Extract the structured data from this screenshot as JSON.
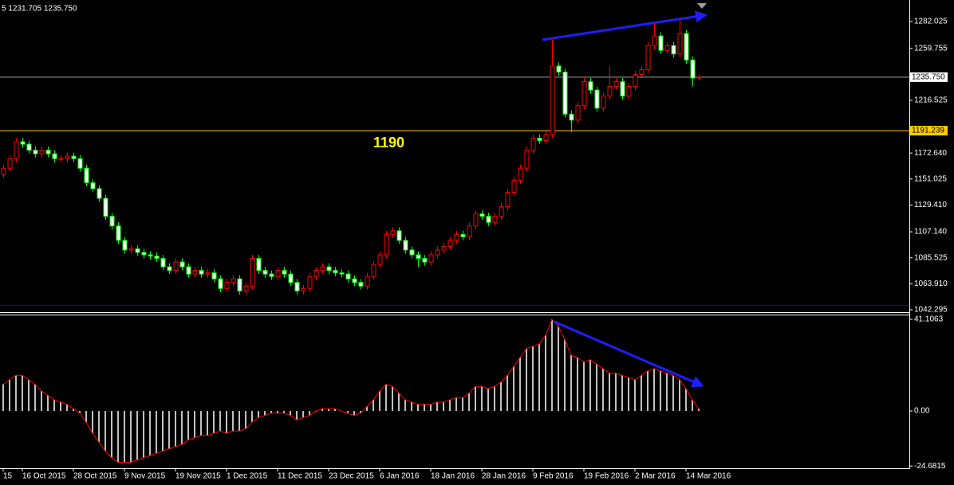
{
  "chart_data": {
    "type": "candlestick",
    "header": "5 1231.705 1235.750",
    "annotation": "1190",
    "up_color": "#ff0000",
    "down_color": "#00ff00",
    "ylim": [
      1040.3,
      1299.9
    ],
    "yticks": [
      1282.025,
      1259.755,
      1216.525,
      {
        "value": 1172.64,
        "label": "1172.640"
      },
      1151.025,
      {
        "value": 1129.41,
        "label": "1129.410"
      },
      {
        "value": 1107.14,
        "label": "1107.140"
      },
      1085.525,
      {
        "value": 1063.91,
        "label": "1063.910"
      },
      1042.295
    ],
    "price_lines": [
      {
        "value": 1235.75,
        "label": "1235.750",
        "color": "#a0a0a0",
        "box_color": "#ffffff"
      },
      {
        "value": 1191.239,
        "color": "#ffcc00",
        "box_color": "#ffcc00"
      },
      {
        "value": 1046,
        "color": "#0000ff"
      }
    ],
    "categories": [
      "15",
      null,
      null,
      "16 Oct 2015",
      null,
      null,
      null,
      null,
      null,
      null,
      null,
      "28 Oct 2015",
      null,
      null,
      null,
      null,
      null,
      null,
      null,
      "9 Nov 2015",
      null,
      null,
      null,
      null,
      null,
      null,
      null,
      "19 Nov 2015",
      null,
      null,
      null,
      null,
      null,
      null,
      null,
      "1 Dec 2015",
      null,
      null,
      null,
      null,
      null,
      null,
      null,
      "11 Dec 2015",
      null,
      null,
      null,
      null,
      null,
      null,
      null,
      "23 Dec 2015",
      null,
      null,
      null,
      null,
      null,
      null,
      null,
      "6 Jan 2016",
      null,
      null,
      null,
      null,
      null,
      null,
      null,
      "18 Jan 2016",
      null,
      null,
      null,
      null,
      null,
      null,
      null,
      "28 Jan 2016",
      null,
      null,
      null,
      null,
      null,
      null,
      null,
      "9 Feb 2016",
      null,
      null,
      null,
      null,
      null,
      null,
      null,
      "19 Feb 2016",
      null,
      null,
      null,
      null,
      null,
      null,
      null,
      "2 Mar 2016",
      null,
      null,
      null,
      null,
      null,
      null,
      null,
      "14 Mar 2016",
      null,
      null
    ],
    "ohlc": [
      [
        1155,
        1163,
        1152,
        1160
      ],
      [
        1160,
        1171,
        1157,
        1168
      ],
      [
        1168,
        1185,
        1165,
        1182
      ],
      [
        1182,
        1185,
        1177,
        1180
      ],
      [
        1180,
        1183,
        1172,
        1175
      ],
      [
        1175,
        1178,
        1169,
        1172
      ],
      [
        1172,
        1178,
        1169,
        1175
      ],
      [
        1175,
        1178,
        1169,
        1172
      ],
      [
        1172,
        1175,
        1165,
        1168
      ],
      [
        1168,
        1171,
        1165,
        1168
      ],
      [
        1168,
        1173,
        1165,
        1170
      ],
      [
        1170,
        1173,
        1165,
        1168
      ],
      [
        1168,
        1171,
        1157,
        1160
      ],
      [
        1160,
        1163,
        1145,
        1148
      ],
      [
        1148,
        1151,
        1140,
        1143
      ],
      [
        1143,
        1146,
        1132,
        1135
      ],
      [
        1135,
        1138,
        1117,
        1120
      ],
      [
        1120,
        1123,
        1109,
        1112
      ],
      [
        1112,
        1115,
        1097,
        1100
      ],
      [
        1100,
        1103,
        1089,
        1092
      ],
      [
        1092,
        1096,
        1089,
        1093
      ],
      [
        1093,
        1096,
        1087,
        1090
      ],
      [
        1090,
        1093,
        1085,
        1088
      ],
      [
        1088,
        1091,
        1084,
        1087
      ],
      [
        1087,
        1090,
        1082,
        1085
      ],
      [
        1085,
        1088,
        1075,
        1078
      ],
      [
        1078,
        1081,
        1072,
        1075
      ],
      [
        1075,
        1085,
        1072,
        1082
      ],
      [
        1082,
        1085,
        1075,
        1078
      ],
      [
        1078,
        1081,
        1069,
        1072
      ],
      [
        1072,
        1078,
        1069,
        1075
      ],
      [
        1075,
        1078,
        1069,
        1072
      ],
      [
        1072,
        1076,
        1069,
        1073
      ],
      [
        1073,
        1076,
        1065,
        1068
      ],
      [
        1068,
        1071,
        1057,
        1060
      ],
      [
        1060,
        1068,
        1057,
        1065
      ],
      [
        1065,
        1071,
        1062,
        1068
      ],
      [
        1068,
        1071,
        1055,
        1058
      ],
      [
        1058,
        1065,
        1055,
        1062
      ],
      [
        1062,
        1088,
        1059,
        1085
      ],
      [
        1085,
        1088,
        1072,
        1075
      ],
      [
        1075,
        1078,
        1069,
        1072
      ],
      [
        1072,
        1075,
        1067,
        1070
      ],
      [
        1070,
        1078,
        1067,
        1075
      ],
      [
        1075,
        1078,
        1069,
        1072
      ],
      [
        1072,
        1075,
        1062,
        1065
      ],
      [
        1065,
        1068,
        1055,
        1058
      ],
      [
        1058,
        1063,
        1055,
        1060
      ],
      [
        1060,
        1073,
        1057,
        1070
      ],
      [
        1070,
        1078,
        1067,
        1075
      ],
      [
        1075,
        1081,
        1072,
        1078
      ],
      [
        1078,
        1081,
        1072,
        1075
      ],
      [
        1075,
        1078,
        1070,
        1073
      ],
      [
        1073,
        1076,
        1069,
        1072
      ],
      [
        1072,
        1075,
        1065,
        1068
      ],
      [
        1068,
        1071,
        1062,
        1065
      ],
      [
        1065,
        1068,
        1059,
        1062
      ],
      [
        1062,
        1073,
        1059,
        1070
      ],
      [
        1070,
        1083,
        1067,
        1080
      ],
      [
        1080,
        1091,
        1077,
        1088
      ],
      [
        1088,
        1108,
        1085,
        1105
      ],
      [
        1105,
        1111,
        1102,
        1108
      ],
      [
        1108,
        1111,
        1097,
        1100
      ],
      [
        1100,
        1103,
        1089,
        1092
      ],
      [
        1092,
        1095,
        1085,
        1088
      ],
      [
        1088,
        1091,
        1078,
        1085
      ],
      [
        1085,
        1088,
        1079,
        1082
      ],
      [
        1082,
        1091,
        1079,
        1088
      ],
      [
        1088,
        1095,
        1085,
        1092
      ],
      [
        1092,
        1098,
        1089,
        1095
      ],
      [
        1095,
        1103,
        1092,
        1100
      ],
      [
        1100,
        1108,
        1097,
        1105
      ],
      [
        1105,
        1108,
        1100,
        1103
      ],
      [
        1103,
        1115,
        1100,
        1112
      ],
      [
        1112,
        1125,
        1109,
        1122
      ],
      [
        1122,
        1125,
        1117,
        1120
      ],
      [
        1120,
        1123,
        1112,
        1115
      ],
      [
        1115,
        1123,
        1112,
        1120
      ],
      [
        1120,
        1131,
        1117,
        1128
      ],
      [
        1128,
        1143,
        1125,
        1140
      ],
      [
        1140,
        1153,
        1137,
        1150
      ],
      [
        1150,
        1163,
        1147,
        1160
      ],
      [
        1160,
        1178,
        1157,
        1175
      ],
      [
        1175,
        1188,
        1172,
        1185
      ],
      [
        1185,
        1188,
        1180,
        1183
      ],
      [
        1183,
        1191,
        1180,
        1188
      ],
      [
        1188,
        1268,
        1185,
        1245
      ],
      [
        1245,
        1248,
        1237,
        1240
      ],
      [
        1240,
        1243,
        1202,
        1205
      ],
      [
        1205,
        1208,
        1190,
        1200
      ],
      [
        1200,
        1215,
        1197,
        1212
      ],
      [
        1212,
        1235,
        1209,
        1232
      ],
      [
        1232,
        1235,
        1222,
        1225
      ],
      [
        1225,
        1228,
        1207,
        1210
      ],
      [
        1210,
        1223,
        1207,
        1220
      ],
      [
        1220,
        1245,
        1217,
        1228
      ],
      [
        1228,
        1235,
        1225,
        1232
      ],
      [
        1232,
        1235,
        1217,
        1220
      ],
      [
        1220,
        1231,
        1217,
        1228
      ],
      [
        1228,
        1241,
        1225,
        1238
      ],
      [
        1238,
        1245,
        1235,
        1242
      ],
      [
        1242,
        1265,
        1239,
        1262
      ],
      [
        1262,
        1280,
        1259,
        1270
      ],
      [
        1270,
        1273,
        1255,
        1258
      ],
      [
        1258,
        1265,
        1255,
        1262
      ],
      [
        1262,
        1265,
        1252,
        1255
      ],
      [
        1255,
        1283,
        1252,
        1272
      ],
      [
        1272,
        1275,
        1247,
        1250
      ],
      [
        1250,
        1253,
        1228,
        1235
      ],
      [
        1235,
        1238,
        1233,
        1235.75
      ]
    ],
    "macd": {
      "color": "#c0c0c0",
      "line_color": "#ff0000",
      "ylim": [
        -25.7,
        43.25
      ],
      "yticks": [
        41.1063,
        {
          "value": 0,
          "label": "0.00"
        },
        -24.6815
      ],
      "values": [
        12,
        14,
        16,
        16,
        14,
        12,
        9,
        7,
        5,
        4,
        3,
        1,
        -1,
        -5,
        -10,
        -14,
        -18,
        -21,
        -23,
        -23,
        -23,
        -22,
        -21,
        -20,
        -19,
        -18,
        -17,
        -16,
        -15,
        -13,
        -12,
        -11,
        -11,
        -10,
        -9,
        -10,
        -9,
        -9,
        -8,
        -5,
        -3,
        -2,
        -1,
        -1,
        -1,
        -2,
        -4,
        -3,
        -2,
        0,
        1,
        1,
        1,
        0,
        -1,
        -2,
        -1,
        2,
        5,
        9,
        12,
        11,
        8,
        5,
        4,
        3,
        3,
        3,
        4,
        4,
        5,
        6,
        6,
        8,
        11,
        11,
        10,
        11,
        13,
        16,
        20,
        24,
        28,
        29,
        30,
        34,
        41.1063,
        38,
        32,
        25,
        24,
        22,
        23,
        21,
        19,
        17,
        17,
        16,
        15,
        14,
        16,
        18,
        19,
        18,
        17,
        16,
        14,
        10,
        5,
        1
      ]
    }
  }
}
